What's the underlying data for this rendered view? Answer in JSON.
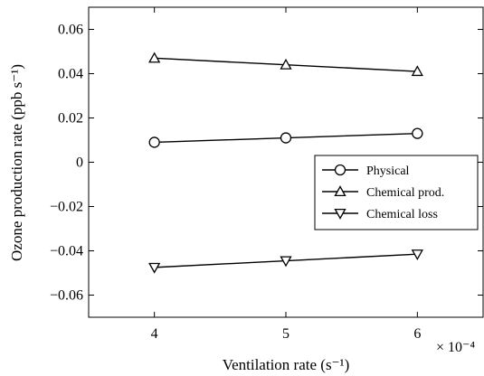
{
  "chart_data": {
    "type": "line",
    "xlabel": "Ventilation rate (s⁻¹)",
    "ylabel": "Ozone production rate (ppb s⁻¹)",
    "x_exponent_label": "× 10⁻⁴",
    "x": [
      4,
      5,
      6
    ],
    "x_ticks": [
      "4",
      "5",
      "6"
    ],
    "xlim": [
      3.5,
      6.5
    ],
    "ylim": [
      -0.07,
      0.07
    ],
    "y_ticks": [
      0.06,
      0.04,
      0.02,
      0,
      -0.02,
      -0.04,
      -0.06
    ],
    "y_tick_labels": [
      "0.06",
      "0.04",
      "0.02",
      "0",
      "−0.02",
      "−0.04",
      "−0.06"
    ],
    "grid": false,
    "legend_position": "center-right",
    "series": [
      {
        "name": "Physical",
        "marker": "circle",
        "values": [
          0.009,
          0.011,
          0.013
        ]
      },
      {
        "name": "Chemical prod.",
        "marker": "triangle-up",
        "values": [
          0.047,
          0.044,
          0.041
        ]
      },
      {
        "name": "Chemical loss",
        "marker": "triangle-down",
        "values": [
          -0.0475,
          -0.0445,
          -0.0415
        ]
      }
    ]
  }
}
